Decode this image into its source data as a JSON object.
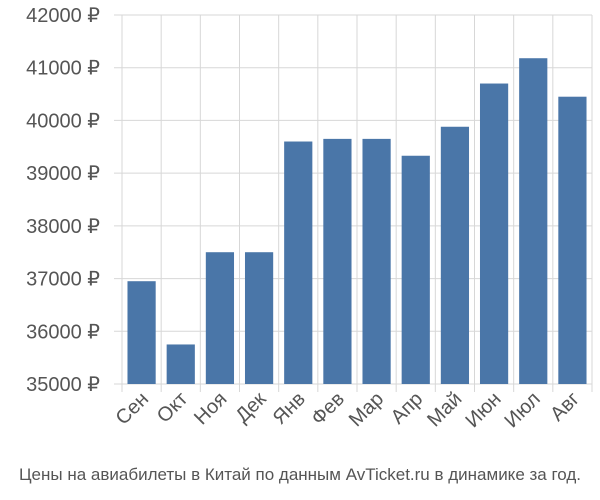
{
  "caption": "Цены на авиабилеты в Китай по данным AvTicket.ru в динамике за год.",
  "colors": {
    "bar": "#4a76a8",
    "grid": "#d7d7d7",
    "text": "#555555",
    "background": "#ffffff"
  },
  "chart_data": {
    "type": "bar",
    "title": "",
    "xlabel": "",
    "ylabel": "",
    "grid": true,
    "ylim": [
      35000,
      42000
    ],
    "yticks": [
      35000,
      36000,
      37000,
      38000,
      39000,
      40000,
      41000,
      42000
    ],
    "ytick_labels": [
      "35000 ₽",
      "36000 ₽",
      "37000 ₽",
      "38000 ₽",
      "39000 ₽",
      "40000 ₽",
      "41000 ₽",
      "42000 ₽"
    ],
    "categories": [
      "Сен",
      "Окт",
      "Ноя",
      "Дек",
      "Янв",
      "Фев",
      "Мар",
      "Апр",
      "Май",
      "Июн",
      "Июл",
      "Авг"
    ],
    "values": [
      36950,
      35750,
      37500,
      37500,
      39600,
      39650,
      39650,
      39330,
      39880,
      40700,
      41180,
      40450
    ]
  }
}
